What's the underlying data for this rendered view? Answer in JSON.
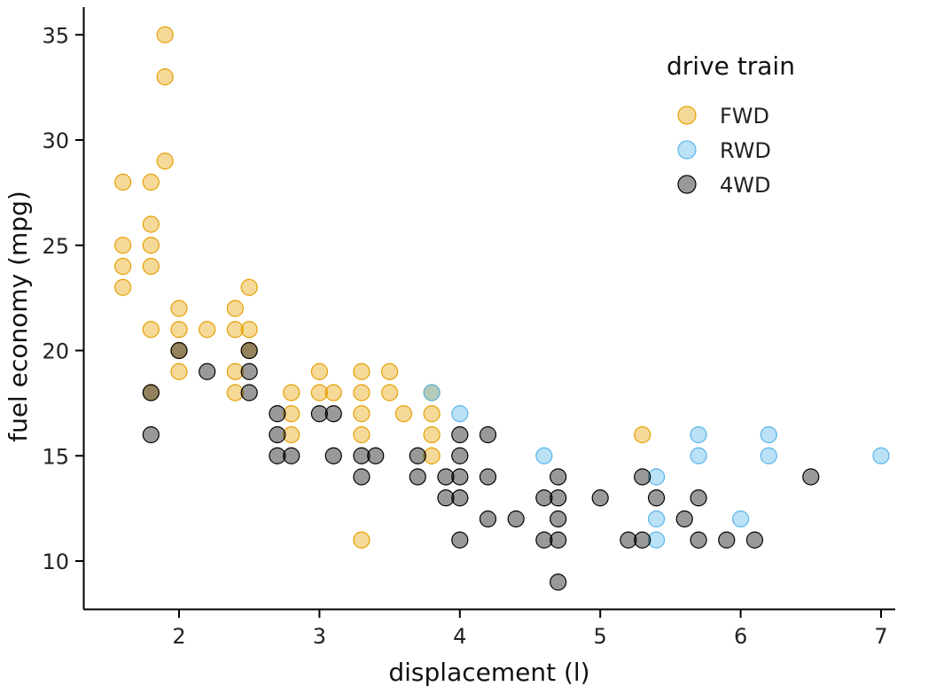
{
  "chart_data": {
    "type": "scatter",
    "xlabel": "displacement (l)",
    "ylabel": "fuel economy (mpg)",
    "xlim": [
      1.4,
      7.1
    ],
    "ylim": [
      7.7,
      36.5
    ],
    "xticks": [
      2,
      3,
      4,
      5,
      6,
      7
    ],
    "yticks": [
      10,
      15,
      20,
      25,
      30,
      35
    ],
    "grid": false,
    "legend": {
      "title": "drive train",
      "position": "top-right"
    },
    "series": [
      {
        "name": "FWD",
        "color": "#E69F00",
        "points": [
          [
            1.6,
            28
          ],
          [
            1.6,
            25
          ],
          [
            1.6,
            24
          ],
          [
            1.6,
            23
          ],
          [
            1.8,
            26
          ],
          [
            1.8,
            25
          ],
          [
            1.8,
            24
          ],
          [
            1.8,
            21
          ],
          [
            1.8,
            18
          ],
          [
            1.8,
            28
          ],
          [
            1.9,
            35
          ],
          [
            1.9,
            33
          ],
          [
            1.9,
            29
          ],
          [
            2.0,
            22
          ],
          [
            2.0,
            21
          ],
          [
            2.0,
            20
          ],
          [
            2.0,
            19
          ],
          [
            2.2,
            21
          ],
          [
            2.4,
            22
          ],
          [
            2.4,
            21
          ],
          [
            2.4,
            19
          ],
          [
            2.4,
            18
          ],
          [
            2.5,
            23
          ],
          [
            2.5,
            21
          ],
          [
            2.5,
            20
          ],
          [
            2.8,
            18
          ],
          [
            2.8,
            17
          ],
          [
            2.8,
            16
          ],
          [
            3.0,
            19
          ],
          [
            3.0,
            18
          ],
          [
            3.1,
            18
          ],
          [
            3.3,
            19
          ],
          [
            3.3,
            18
          ],
          [
            3.3,
            17
          ],
          [
            3.3,
            16
          ],
          [
            3.3,
            11
          ],
          [
            3.5,
            19
          ],
          [
            3.5,
            18
          ],
          [
            3.6,
            17
          ],
          [
            3.8,
            18
          ],
          [
            3.8,
            17
          ],
          [
            3.8,
            16
          ],
          [
            3.8,
            15
          ],
          [
            5.3,
            16
          ]
        ]
      },
      {
        "name": "RWD",
        "color": "#56B4E9",
        "points": [
          [
            3.8,
            18
          ],
          [
            4.0,
            17
          ],
          [
            4.6,
            15
          ],
          [
            5.4,
            14
          ],
          [
            5.4,
            12
          ],
          [
            5.4,
            11
          ],
          [
            5.7,
            16
          ],
          [
            5.7,
            15
          ],
          [
            6.0,
            12
          ],
          [
            6.2,
            16
          ],
          [
            6.2,
            15
          ],
          [
            7.0,
            15
          ]
        ]
      },
      {
        "name": "4WD",
        "color": "#000000",
        "points": [
          [
            1.8,
            16
          ],
          [
            1.8,
            18
          ],
          [
            2.0,
            20
          ],
          [
            2.2,
            19
          ],
          [
            2.5,
            20
          ],
          [
            2.5,
            19
          ],
          [
            2.5,
            18
          ],
          [
            2.7,
            17
          ],
          [
            2.7,
            16
          ],
          [
            2.7,
            15
          ],
          [
            2.8,
            15
          ],
          [
            3.0,
            17
          ],
          [
            3.1,
            17
          ],
          [
            3.1,
            15
          ],
          [
            3.3,
            15
          ],
          [
            3.3,
            14
          ],
          [
            3.4,
            15
          ],
          [
            3.7,
            15
          ],
          [
            3.7,
            14
          ],
          [
            3.9,
            14
          ],
          [
            3.9,
            13
          ],
          [
            4.0,
            16
          ],
          [
            4.0,
            15
          ],
          [
            4.0,
            14
          ],
          [
            4.0,
            13
          ],
          [
            4.0,
            11
          ],
          [
            4.2,
            16
          ],
          [
            4.2,
            14
          ],
          [
            4.2,
            12
          ],
          [
            4.4,
            12
          ],
          [
            4.6,
            13
          ],
          [
            4.6,
            11
          ],
          [
            4.7,
            14
          ],
          [
            4.7,
            13
          ],
          [
            4.7,
            12
          ],
          [
            4.7,
            11
          ],
          [
            4.7,
            9
          ],
          [
            5.0,
            13
          ],
          [
            5.2,
            11
          ],
          [
            5.3,
            14
          ],
          [
            5.3,
            11
          ],
          [
            5.4,
            13
          ],
          [
            5.6,
            12
          ],
          [
            5.7,
            13
          ],
          [
            5.7,
            11
          ],
          [
            5.9,
            11
          ],
          [
            6.1,
            11
          ],
          [
            6.5,
            14
          ]
        ]
      }
    ]
  }
}
